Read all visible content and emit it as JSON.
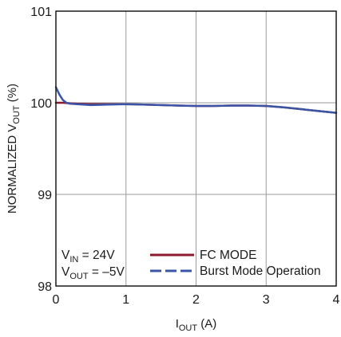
{
  "chart_data": {
    "type": "line",
    "xlabel": {
      "main": "I",
      "sub": "OUT",
      "suffix": " (A)"
    },
    "ylabel": {
      "prefix": "NORMALIZED V",
      "sub": "OUT",
      "suffix": " (%)"
    },
    "xlim": [
      0,
      4
    ],
    "ylim": [
      98,
      101
    ],
    "x_ticks": [
      "0",
      "1",
      "2",
      "3",
      "4"
    ],
    "y_ticks": [
      "98",
      "99",
      "100",
      "101"
    ],
    "grid": true,
    "legend_position": "bottom-right",
    "annotations": [
      {
        "main": "V",
        "sub": "IN",
        "rest": " = 24V"
      },
      {
        "main": "V",
        "sub": "OUT",
        "rest": " = –5V"
      }
    ],
    "series": [
      {
        "name": "FC MODE",
        "color": "#8b1a2e",
        "x": [
          0,
          0.1,
          0.2,
          0.3,
          0.5,
          0.75,
          1.0,
          1.25,
          1.5,
          1.75,
          2.0,
          2.25,
          2.5,
          2.75,
          3.0,
          3.25,
          3.5,
          3.75,
          4.0
        ],
        "y": [
          100.0,
          100.0,
          99.995,
          99.99,
          99.985,
          99.985,
          99.985,
          99.98,
          99.975,
          99.97,
          99.965,
          99.965,
          99.97,
          99.97,
          99.965,
          99.95,
          99.93,
          99.91,
          99.89
        ]
      },
      {
        "name": "Burst Mode Operation",
        "color": "#3a55a8",
        "x": [
          0,
          0.05,
          0.1,
          0.15,
          0.2,
          0.3,
          0.5,
          0.75,
          1.0,
          1.25,
          1.5,
          1.75,
          2.0,
          2.25,
          2.5,
          2.75,
          3.0,
          3.25,
          3.5,
          3.75,
          4.0
        ],
        "y": [
          100.17,
          100.09,
          100.03,
          100.0,
          99.99,
          99.985,
          99.975,
          99.98,
          99.985,
          99.98,
          99.975,
          99.97,
          99.965,
          99.965,
          99.97,
          99.97,
          99.965,
          99.95,
          99.93,
          99.91,
          99.89
        ]
      }
    ]
  }
}
